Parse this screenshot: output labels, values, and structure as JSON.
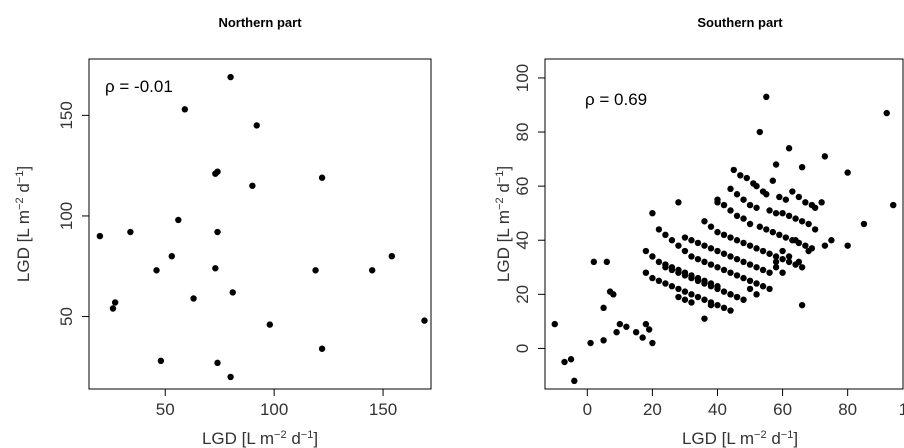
{
  "chart_data": [
    {
      "type": "scatter",
      "title": "Northern part",
      "xlabel": "LGD [L m^-2 d^-1]",
      "ylabel": "LGD [L m^-2 d^-1]",
      "xlim": [
        15,
        172
      ],
      "ylim": [
        14,
        178
      ],
      "xticks": [
        50,
        100,
        150
      ],
      "yticks": [
        50,
        100,
        150
      ],
      "annotation": "ρ = -0.01",
      "x": [
        80,
        59,
        92,
        122,
        74,
        73,
        90,
        56,
        74,
        20,
        34,
        53,
        46,
        73,
        154,
        145,
        119,
        63,
        81,
        27,
        26,
        169,
        98,
        122,
        48,
        74,
        80
      ],
      "y": [
        169,
        153,
        145,
        119,
        122,
        121,
        115,
        98,
        92,
        90,
        92,
        80,
        73,
        74,
        80,
        73,
        73,
        59,
        62,
        57,
        54,
        48,
        46,
        34,
        28,
        27,
        20
      ]
    },
    {
      "type": "scatter",
      "title": "Southern part",
      "xlabel": "LGD [L m^-2 d^-1]",
      "ylabel": "LGD [L m^-2 d^-1]",
      "xlim": [
        -13,
        97
      ],
      "ylim": [
        -15,
        107
      ],
      "xticks": [
        0,
        20,
        40,
        60,
        80,
        100
      ],
      "yticks": [
        0,
        20,
        40,
        60,
        80,
        100
      ],
      "annotation": "ρ = 0.69",
      "x": [
        55,
        92,
        53,
        62,
        73,
        80,
        94,
        85,
        66,
        58,
        45,
        47,
        49,
        51,
        52,
        54,
        55,
        57,
        59,
        61,
        63,
        65,
        67,
        69,
        70,
        72,
        44,
        46,
        48,
        50,
        52,
        56,
        58,
        60,
        62,
        64,
        66,
        68,
        70,
        40,
        42,
        44,
        46,
        48,
        50,
        53,
        55,
        57,
        59,
        61,
        63,
        65,
        67,
        69,
        36,
        38,
        40,
        42,
        44,
        46,
        48,
        50,
        52,
        54,
        56,
        58,
        60,
        62,
        64,
        66,
        68,
        73,
        75,
        80,
        30,
        32,
        34,
        36,
        38,
        40,
        42,
        44,
        46,
        48,
        50,
        52,
        54,
        56,
        58,
        60,
        62,
        64,
        66,
        20,
        22,
        24,
        26,
        28,
        30,
        32,
        34,
        36,
        38,
        40,
        42,
        44,
        46,
        48,
        50,
        52,
        54,
        56,
        58,
        60,
        18,
        20,
        22,
        24,
        26,
        28,
        30,
        32,
        34,
        36,
        38,
        40,
        42,
        44,
        46,
        48,
        50,
        52,
        18,
        20,
        22,
        24,
        26,
        28,
        30,
        32,
        34,
        36,
        38,
        40,
        42,
        44,
        24,
        26,
        28,
        30,
        32,
        34,
        36,
        38,
        40,
        44,
        46,
        28,
        30,
        32,
        36,
        40,
        7,
        8,
        6,
        2,
        5,
        10,
        15,
        17,
        20,
        19,
        18,
        12,
        9,
        5,
        -10,
        -4,
        1,
        -7,
        -5,
        38,
        65,
        28
      ],
      "y": [
        93,
        87,
        80,
        74,
        71,
        65,
        53,
        46,
        67,
        68,
        66,
        64,
        63,
        61,
        60,
        58,
        57,
        62,
        56,
        55,
        58,
        56,
        54,
        53,
        52,
        54,
        59,
        57,
        55,
        53,
        52,
        51,
        50,
        50,
        49,
        48,
        47,
        46,
        44,
        55,
        53,
        51,
        49,
        48,
        46,
        45,
        44,
        43,
        42,
        41,
        40,
        39,
        38,
        37,
        47,
        45,
        43,
        42,
        41,
        40,
        39,
        38,
        37,
        36,
        35,
        34,
        33,
        32,
        31,
        30,
        36,
        38,
        40,
        38,
        41,
        40,
        39,
        38,
        37,
        36,
        35,
        34,
        33,
        32,
        31,
        30,
        29,
        28,
        32,
        36,
        34,
        40,
        16,
        50,
        44,
        42,
        40,
        38,
        36,
        34,
        33,
        32,
        31,
        30,
        29,
        28,
        27,
        26,
        25,
        24,
        23,
        22,
        30,
        28,
        36,
        34,
        32,
        30,
        29,
        28,
        27,
        26,
        25,
        24,
        23,
        22,
        21,
        20,
        19,
        18,
        22,
        20,
        28,
        26,
        25,
        24,
        23,
        22,
        21,
        20,
        19,
        18,
        17,
        16,
        15,
        14,
        31,
        30,
        29,
        28,
        27,
        26,
        25,
        24,
        23,
        20,
        19,
        19,
        18,
        17,
        11,
        54,
        21,
        20,
        32,
        32,
        15,
        9,
        6,
        4,
        2,
        7,
        9,
        8,
        6,
        3,
        9,
        -12,
        2,
        -5,
        -4,
        16,
        32,
        54
      ]
    }
  ]
}
